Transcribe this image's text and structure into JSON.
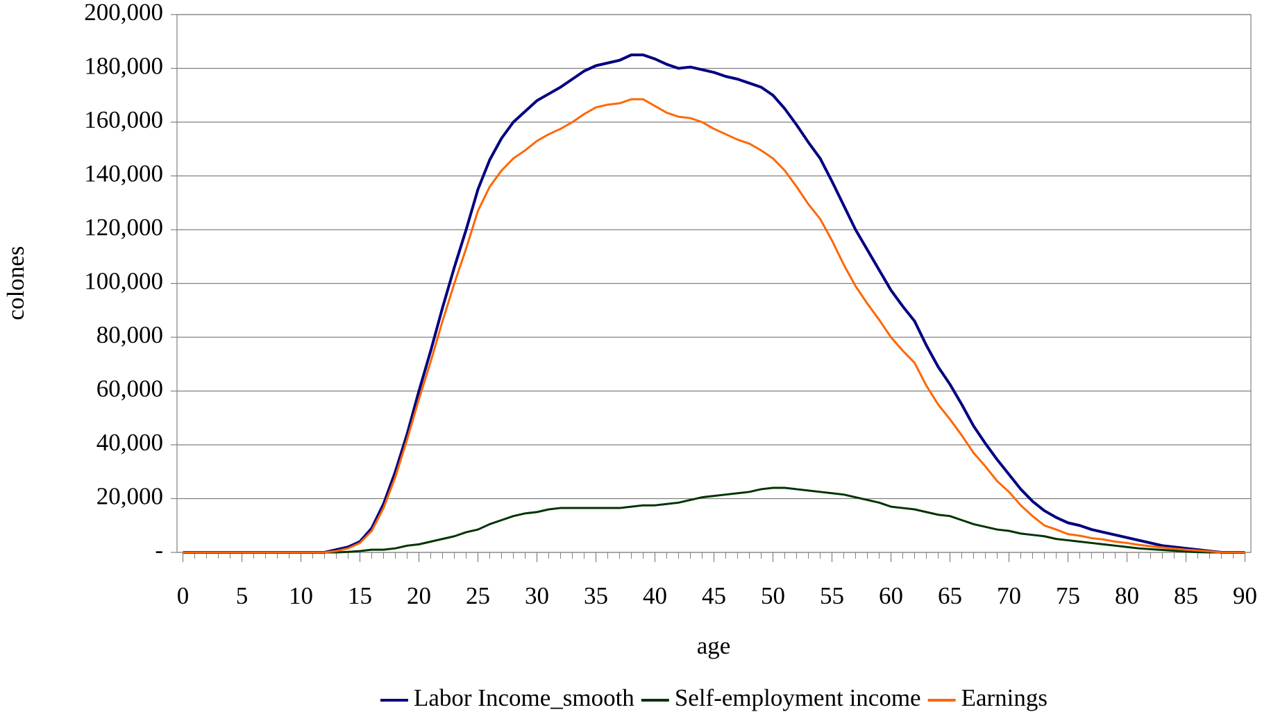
{
  "chart_data": {
    "type": "line",
    "xlabel": "age",
    "ylabel": "colones",
    "x": [
      0,
      1,
      2,
      3,
      4,
      5,
      6,
      7,
      8,
      9,
      10,
      11,
      12,
      13,
      14,
      15,
      16,
      17,
      18,
      19,
      20,
      21,
      22,
      23,
      24,
      25,
      26,
      27,
      28,
      29,
      30,
      31,
      32,
      33,
      34,
      35,
      36,
      37,
      38,
      39,
      40,
      41,
      42,
      43,
      44,
      45,
      46,
      47,
      48,
      49,
      50,
      51,
      52,
      53,
      54,
      55,
      56,
      57,
      58,
      59,
      60,
      61,
      62,
      63,
      64,
      65,
      66,
      67,
      68,
      69,
      70,
      71,
      72,
      73,
      74,
      75,
      76,
      77,
      78,
      79,
      80,
      81,
      82,
      83,
      84,
      85,
      86,
      87,
      88,
      89,
      90
    ],
    "xlim": [
      0,
      90
    ],
    "xticks": [
      0,
      5,
      10,
      15,
      20,
      25,
      30,
      35,
      40,
      45,
      50,
      55,
      60,
      65,
      70,
      75,
      80,
      85,
      90
    ],
    "ylim": [
      0,
      200000
    ],
    "yticks": [
      {
        "value": 0,
        "label": "-"
      },
      {
        "value": 20000,
        "label": "20,000"
      },
      {
        "value": 40000,
        "label": "40,000"
      },
      {
        "value": 60000,
        "label": "60,000"
      },
      {
        "value": 80000,
        "label": "80,000"
      },
      {
        "value": 100000,
        "label": "100,000"
      },
      {
        "value": 120000,
        "label": "120,000"
      },
      {
        "value": 140000,
        "label": "140,000"
      },
      {
        "value": 160000,
        "label": "160,000"
      },
      {
        "value": 180000,
        "label": "180,000"
      },
      {
        "value": 200000,
        "label": "200,000"
      }
    ],
    "grid": true,
    "legend": "bottom",
    "series": [
      {
        "name": "Labor Income_smooth",
        "color": "#000080",
        "values": [
          0,
          0,
          0,
          0,
          0,
          0,
          0,
          0,
          0,
          0,
          0,
          0,
          0,
          1000,
          2000,
          4000,
          9000,
          18000,
          30000,
          44000,
          60000,
          75000,
          91000,
          106000,
          120000,
          135000,
          146000,
          154000,
          160000,
          164000,
          168000,
          170500,
          173000,
          176000,
          179000,
          181000,
          182000,
          183000,
          185000,
          185000,
          183500,
          181500,
          180000,
          180500,
          179500,
          178500,
          177000,
          176000,
          174500,
          173000,
          170000,
          165000,
          159000,
          152500,
          146500,
          138000,
          129000,
          120000,
          112500,
          105000,
          97500,
          91500,
          86000,
          77000,
          69000,
          62500,
          55000,
          47000,
          40500,
          34500,
          29000,
          23500,
          19000,
          15500,
          13000,
          11000,
          10000,
          8500,
          7500,
          6500,
          5500,
          4500,
          3500,
          2500,
          2000,
          1500,
          1000,
          500,
          0,
          0,
          0
        ]
      },
      {
        "name": "Self-employment income",
        "color": "#003300",
        "values": [
          0,
          0,
          0,
          0,
          0,
          0,
          0,
          0,
          0,
          0,
          0,
          0,
          0,
          0,
          200,
          500,
          1000,
          1000,
          1500,
          2500,
          3000,
          4000,
          5000,
          6000,
          7500,
          8500,
          10500,
          12000,
          13500,
          14500,
          15000,
          16000,
          16500,
          16500,
          16500,
          16500,
          16500,
          16500,
          17000,
          17500,
          17500,
          18000,
          18500,
          19500,
          20500,
          21000,
          21500,
          22000,
          22500,
          23500,
          24000,
          24000,
          23500,
          23000,
          22500,
          22000,
          21500,
          20500,
          19500,
          18500,
          17000,
          16500,
          16000,
          15000,
          14000,
          13500,
          12000,
          10500,
          9500,
          8500,
          8000,
          7000,
          6500,
          6000,
          5000,
          4500,
          4000,
          3500,
          3000,
          2500,
          2000,
          1500,
          1200,
          900,
          600,
          300,
          100,
          0,
          0,
          0,
          0
        ]
      },
      {
        "name": "Earnings",
        "color": "#ff6600",
        "values": [
          0,
          0,
          0,
          0,
          0,
          0,
          0,
          0,
          0,
          0,
          0,
          0,
          0,
          500,
          1500,
          3500,
          8000,
          16500,
          28000,
          42000,
          57000,
          71000,
          86000,
          100000,
          113000,
          127000,
          136000,
          142000,
          146500,
          149500,
          153000,
          155500,
          157500,
          160000,
          163000,
          165500,
          166500,
          167000,
          168500,
          168500,
          166000,
          163500,
          162000,
          161500,
          160000,
          157500,
          155500,
          153500,
          152000,
          149500,
          146500,
          142000,
          136000,
          129500,
          124000,
          116000,
          107000,
          99000,
          92500,
          86500,
          80000,
          75000,
          70500,
          62000,
          55000,
          49500,
          43500,
          37000,
          32000,
          26500,
          22500,
          17500,
          13500,
          10000,
          8500,
          6800,
          6200,
          5300,
          4800,
          4000,
          3500,
          2800,
          2300,
          1800,
          1400,
          1000,
          700,
          400,
          0,
          0,
          0
        ]
      }
    ]
  }
}
